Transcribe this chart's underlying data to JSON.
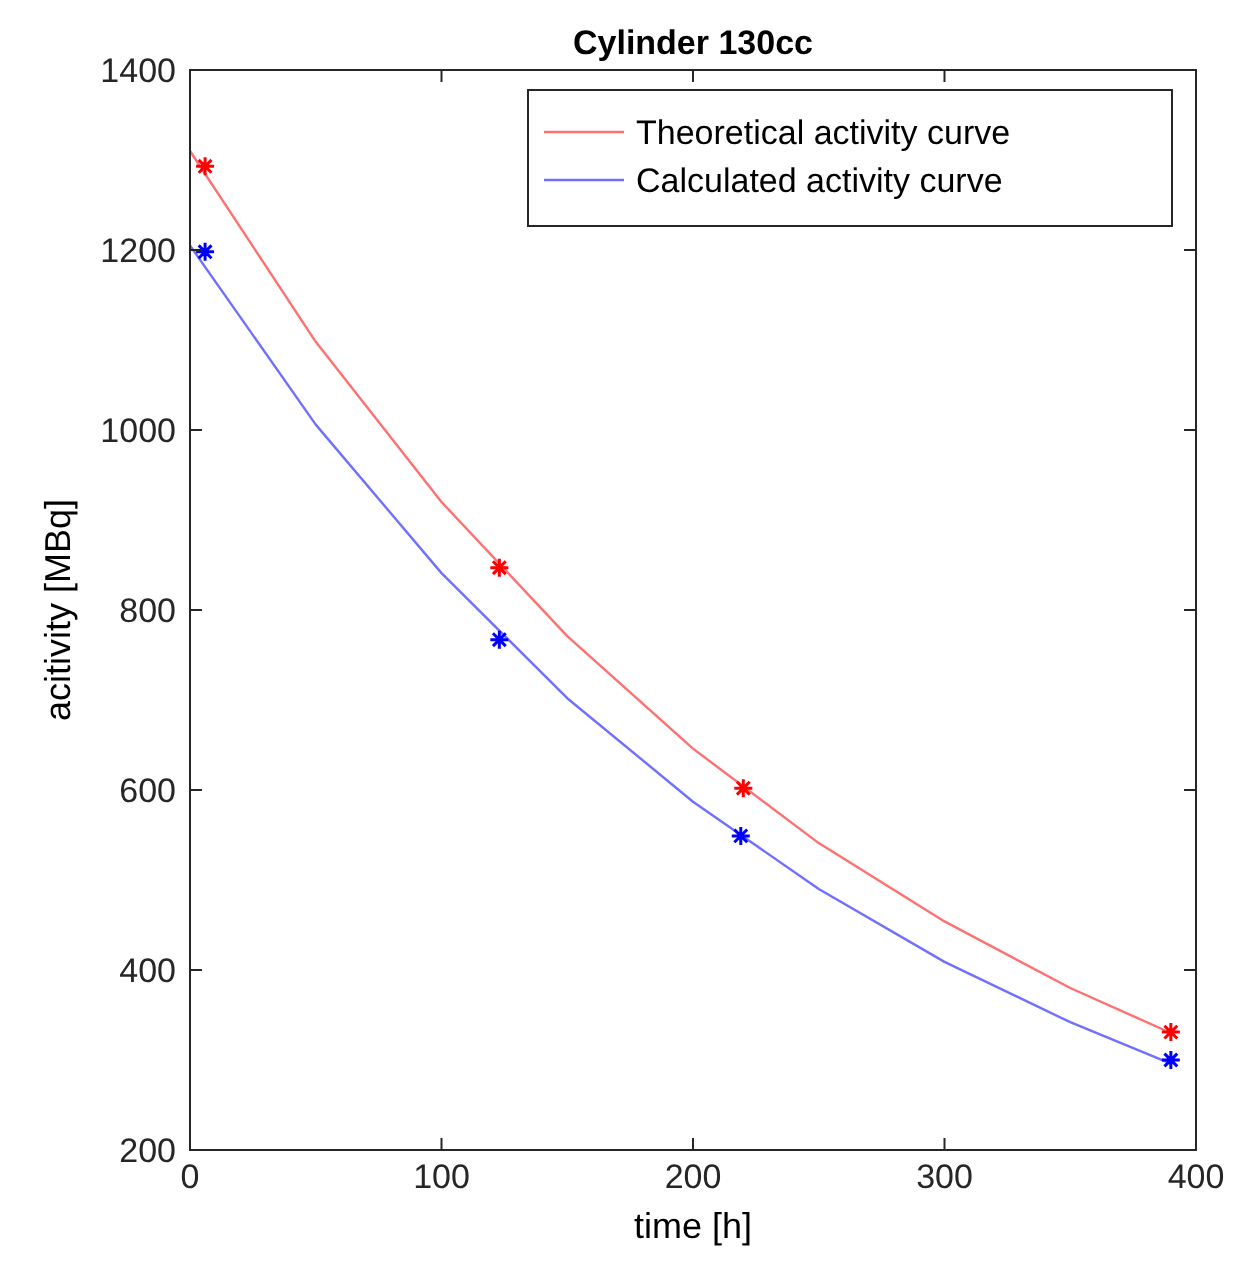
{
  "chart_data": {
    "type": "line",
    "title": "Cylinder 130cc",
    "xlabel": "time [h]",
    "ylabel": "acitivity [MBq]",
    "xlim": [
      0,
      400
    ],
    "ylim": [
      200,
      1400
    ],
    "xticks": [
      0,
      100,
      200,
      300,
      400
    ],
    "yticks": [
      200,
      400,
      600,
      800,
      1000,
      1200,
      1400
    ],
    "grid": false,
    "legend": "top right",
    "series": [
      {
        "name": "Theoretical activity curve",
        "color": "#ff7070",
        "marker": "none",
        "x": [
          0,
          50,
          100,
          150,
          200,
          250,
          300,
          350,
          390
        ],
        "values": [
          1310,
          1098,
          920,
          771,
          646,
          541,
          454,
          380,
          330
        ]
      },
      {
        "name": "Calculated activity curve",
        "color": "#7070ff",
        "marker": "none",
        "x": [
          0,
          50,
          100,
          150,
          200,
          250,
          300,
          350,
          390
        ],
        "values": [
          1205,
          1006,
          841,
          702,
          587,
          490,
          409,
          342,
          296
        ]
      },
      {
        "color": "#ff0000",
        "type": "scatter",
        "marker": "cross",
        "x": [
          6,
          123,
          220,
          390
        ],
        "values": [
          1293,
          847,
          602,
          331
        ]
      },
      {
        "color": "#0000ff",
        "type": "scatter",
        "marker": "cross",
        "x": [
          6,
          123,
          219,
          390
        ],
        "values": [
          1198,
          767,
          549,
          300
        ]
      }
    ]
  }
}
